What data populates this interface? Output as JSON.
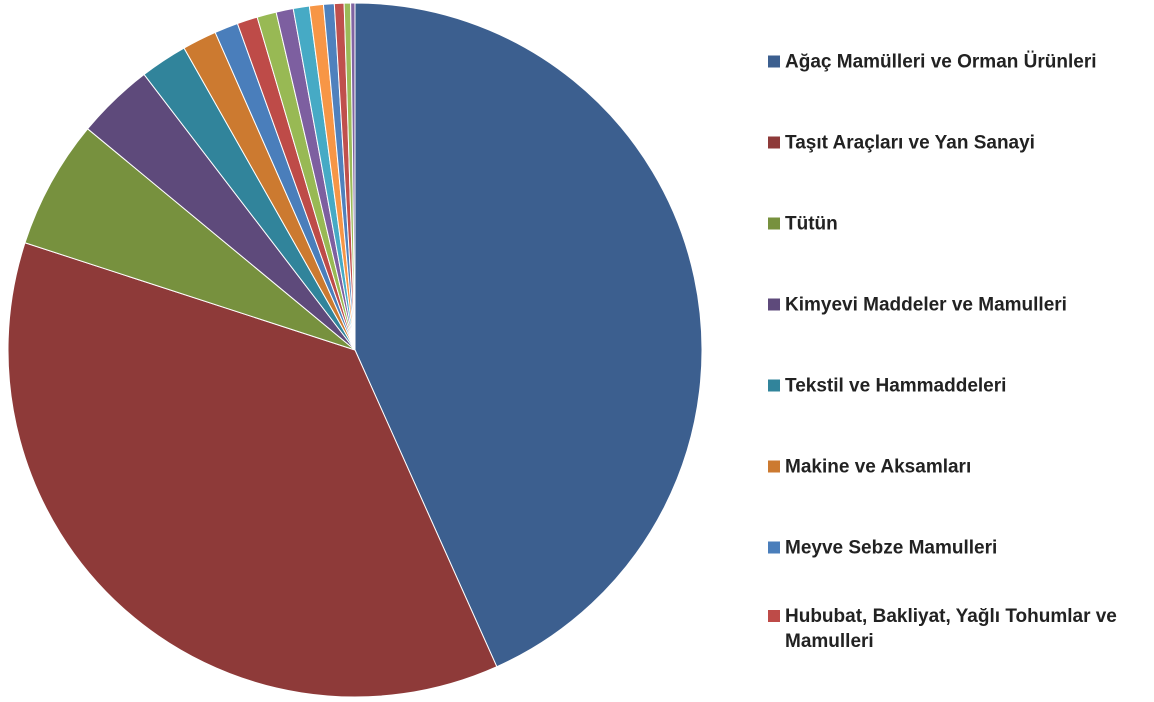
{
  "chart_data": {
    "type": "pie",
    "categories": [
      "Ağaç Mamülleri ve Orman Ürünleri",
      "Taşıt Araçları ve Yan Sanayi",
      "Tütün",
      "Kimyevi Maddeler ve Mamulleri",
      "Tekstil ve Hammaddeleri",
      "Makine ve Aksamları",
      "Meyve Sebze Mamulleri",
      "Hububat, Bakliyat, Yağlı Tohumlar ve Mamulleri",
      null,
      null,
      null,
      null,
      null,
      null,
      null,
      null
    ],
    "values": [
      43.3,
      36.7,
      6.0,
      3.6,
      2.2,
      1.6,
      1.1,
      0.95,
      0.9,
      0.8,
      0.75,
      0.65,
      0.5,
      0.45,
      0.3,
      0.2
    ],
    "colors": [
      "#3c5f8f",
      "#8e3a39",
      "#77913e",
      "#5e4a7b",
      "#31849b",
      "#cc7a30",
      "#4a7ebb",
      "#be4b48",
      "#98b954",
      "#7d5fa0",
      "#46aac5",
      "#f79646",
      "#4f81bd",
      "#c0504d",
      "#9bbb59",
      "#8064a2"
    ],
    "legend": "right"
  }
}
